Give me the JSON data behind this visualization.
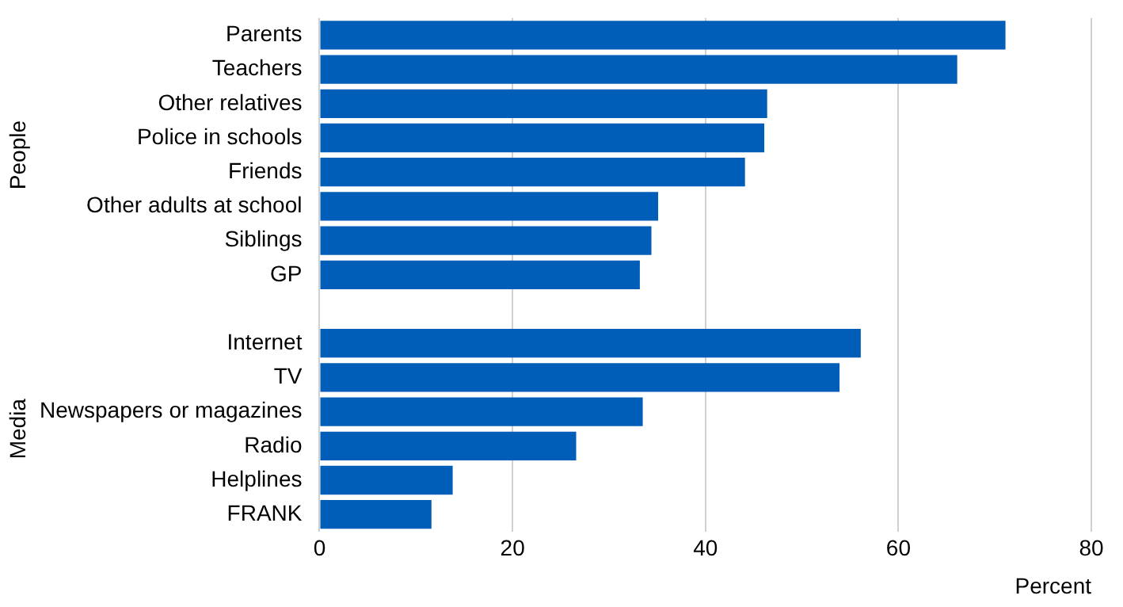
{
  "chart_data": {
    "type": "bar",
    "orientation": "horizontal",
    "xlabel": "Percent",
    "categories": [
      "Parents",
      "Teachers",
      "Other relatives",
      "Police in schools",
      "Friends",
      "Other adults at school",
      "Siblings",
      "GP",
      null,
      "Internet",
      "TV",
      "Newspapers or magazines",
      "Radio",
      "Helplines",
      "FRANK"
    ],
    "values": [
      71.1,
      66.1,
      46.4,
      46.1,
      44.1,
      35.1,
      34.4,
      33.2,
      null,
      56.1,
      53.9,
      33.5,
      26.6,
      13.8,
      11.6
    ],
    "color": "#005eb8",
    "xlim": [
      0,
      80
    ],
    "xticks": [
      0,
      20,
      40,
      60,
      80
    ],
    "grid": "x",
    "legend": false,
    "annotations": [
      "People",
      "Media"
    ]
  }
}
